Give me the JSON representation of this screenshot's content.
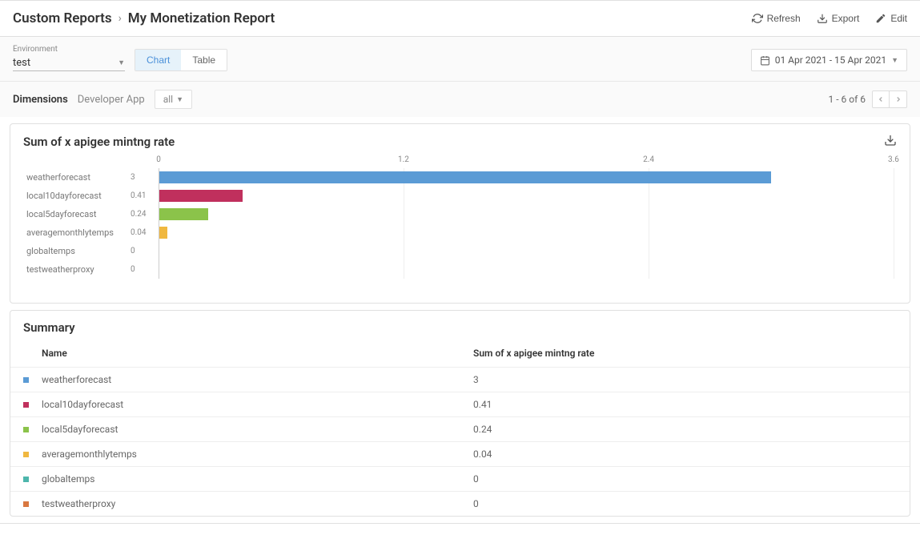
{
  "breadcrumb": {
    "parent": "Custom Reports",
    "current": "My Monetization Report"
  },
  "actions": {
    "refresh": "Refresh",
    "export": "Export",
    "edit": "Edit"
  },
  "filters": {
    "env_label": "Environment",
    "env_value": "test",
    "view_chart": "Chart",
    "view_table": "Table",
    "date_range": "01 Apr 2021 - 15 Apr 2021"
  },
  "dimensions": {
    "label": "Dimensions",
    "type": "Developer App",
    "filter": "all",
    "pager": "1 - 6 of 6"
  },
  "chart": {
    "title": "Sum of x apigee mintng rate",
    "type": "bar",
    "xmax": 3.6,
    "ticks": [
      {
        "label": "0",
        "pos": 0
      },
      {
        "label": "1.2",
        "pos": 33.33
      },
      {
        "label": "2.4",
        "pos": 66.67
      },
      {
        "label": "3.6",
        "pos": 100
      }
    ],
    "series": [
      {
        "name": "weatherforecast",
        "value": 3,
        "label": "3",
        "color": "#5b9bd5"
      },
      {
        "name": "local10dayforecast",
        "value": 0.41,
        "label": "0.41",
        "color": "#c0305d"
      },
      {
        "name": "local5dayforecast",
        "value": 0.24,
        "label": "0.24",
        "color": "#8bc34a"
      },
      {
        "name": "averagemonthlytemps",
        "value": 0.04,
        "label": "0.04",
        "color": "#f0b840"
      },
      {
        "name": "globaltemps",
        "value": 0,
        "label": "0",
        "color": "#4db6ac"
      },
      {
        "name": "testweatherproxy",
        "value": 0,
        "label": "0",
        "color": "#d97840"
      }
    ]
  },
  "summary": {
    "title": "Summary",
    "col_name": "Name",
    "col_value": "Sum of x apigee mintng rate"
  }
}
